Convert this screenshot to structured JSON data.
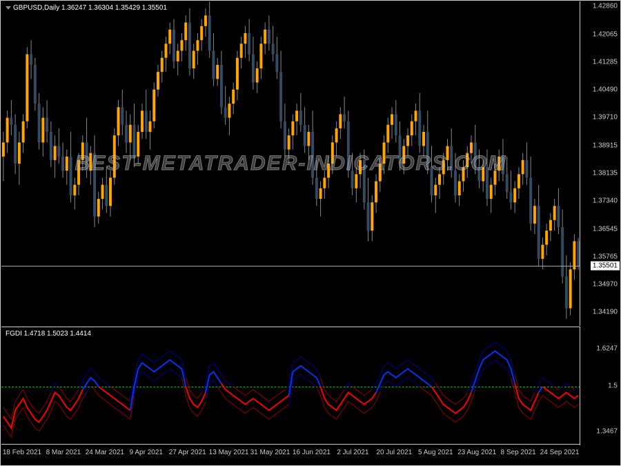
{
  "main": {
    "header": "GBPUSD,Daily  1.36247 1.36304 1.35429 1.35501",
    "watermark": "BEST-METATRADER-INDICATORS.COM",
    "ymin": 1.338,
    "ymax": 1.43,
    "yticks": [
      1.4286,
      1.42065,
      1.41285,
      1.4049,
      1.3971,
      1.38915,
      1.38135,
      1.3734,
      1.36545,
      1.35765,
      1.3497,
      1.3419
    ],
    "current_price": 1.35501,
    "bull_color": "#ffa500",
    "bear_color": "#334a60",
    "wick_color": "#888",
    "candle_width": 4,
    "candles": [
      {
        "o": 1.386,
        "h": 1.393,
        "l": 1.379,
        "c": 1.39
      },
      {
        "o": 1.39,
        "h": 1.399,
        "l": 1.387,
        "c": 1.397
      },
      {
        "o": 1.397,
        "h": 1.402,
        "l": 1.392,
        "c": 1.395
      },
      {
        "o": 1.395,
        "h": 1.398,
        "l": 1.381,
        "c": 1.384
      },
      {
        "o": 1.384,
        "h": 1.393,
        "l": 1.378,
        "c": 1.39
      },
      {
        "o": 1.39,
        "h": 1.398,
        "l": 1.387,
        "c": 1.396
      },
      {
        "o": 1.396,
        "h": 1.417,
        "l": 1.394,
        "c": 1.415
      },
      {
        "o": 1.415,
        "h": 1.419,
        "l": 1.408,
        "c": 1.412
      },
      {
        "o": 1.412,
        "h": 1.414,
        "l": 1.399,
        "c": 1.401
      },
      {
        "o": 1.401,
        "h": 1.404,
        "l": 1.388,
        "c": 1.39
      },
      {
        "o": 1.39,
        "h": 1.4,
        "l": 1.386,
        "c": 1.397
      },
      {
        "o": 1.397,
        "h": 1.402,
        "l": 1.39,
        "c": 1.393
      },
      {
        "o": 1.393,
        "h": 1.396,
        "l": 1.383,
        "c": 1.385
      },
      {
        "o": 1.385,
        "h": 1.392,
        "l": 1.38,
        "c": 1.389
      },
      {
        "o": 1.389,
        "h": 1.394,
        "l": 1.384,
        "c": 1.386
      },
      {
        "o": 1.386,
        "h": 1.39,
        "l": 1.38,
        "c": 1.382
      },
      {
        "o": 1.382,
        "h": 1.388,
        "l": 1.378,
        "c": 1.386
      },
      {
        "o": 1.386,
        "h": 1.393,
        "l": 1.373,
        "c": 1.375
      },
      {
        "o": 1.375,
        "h": 1.38,
        "l": 1.371,
        "c": 1.378
      },
      {
        "o": 1.378,
        "h": 1.387,
        "l": 1.375,
        "c": 1.385
      },
      {
        "o": 1.385,
        "h": 1.392,
        "l": 1.382,
        "c": 1.39
      },
      {
        "o": 1.39,
        "h": 1.397,
        "l": 1.38,
        "c": 1.382
      },
      {
        "o": 1.382,
        "h": 1.389,
        "l": 1.378,
        "c": 1.387
      },
      {
        "o": 1.387,
        "h": 1.392,
        "l": 1.366,
        "c": 1.369
      },
      {
        "o": 1.369,
        "h": 1.376,
        "l": 1.367,
        "c": 1.374
      },
      {
        "o": 1.374,
        "h": 1.38,
        "l": 1.371,
        "c": 1.378
      },
      {
        "o": 1.378,
        "h": 1.383,
        "l": 1.37,
        "c": 1.372
      },
      {
        "o": 1.372,
        "h": 1.382,
        "l": 1.369,
        "c": 1.38
      },
      {
        "o": 1.38,
        "h": 1.394,
        "l": 1.378,
        "c": 1.392
      },
      {
        "o": 1.392,
        "h": 1.402,
        "l": 1.389,
        "c": 1.4
      },
      {
        "o": 1.4,
        "h": 1.405,
        "l": 1.392,
        "c": 1.395
      },
      {
        "o": 1.395,
        "h": 1.399,
        "l": 1.387,
        "c": 1.39
      },
      {
        "o": 1.39,
        "h": 1.398,
        "l": 1.385,
        "c": 1.395
      },
      {
        "o": 1.395,
        "h": 1.401,
        "l": 1.383,
        "c": 1.386
      },
      {
        "o": 1.386,
        "h": 1.395,
        "l": 1.384,
        "c": 1.393
      },
      {
        "o": 1.393,
        "h": 1.401,
        "l": 1.391,
        "c": 1.399
      },
      {
        "o": 1.399,
        "h": 1.405,
        "l": 1.391,
        "c": 1.393
      },
      {
        "o": 1.393,
        "h": 1.399,
        "l": 1.388,
        "c": 1.396
      },
      {
        "o": 1.396,
        "h": 1.407,
        "l": 1.394,
        "c": 1.405
      },
      {
        "o": 1.405,
        "h": 1.412,
        "l": 1.403,
        "c": 1.41
      },
      {
        "o": 1.41,
        "h": 1.416,
        "l": 1.407,
        "c": 1.414
      },
      {
        "o": 1.414,
        "h": 1.42,
        "l": 1.41,
        "c": 1.418
      },
      {
        "o": 1.418,
        "h": 1.424,
        "l": 1.415,
        "c": 1.422
      },
      {
        "o": 1.422,
        "h": 1.425,
        "l": 1.411,
        "c": 1.413
      },
      {
        "o": 1.413,
        "h": 1.418,
        "l": 1.409,
        "c": 1.416
      },
      {
        "o": 1.416,
        "h": 1.421,
        "l": 1.413,
        "c": 1.419
      },
      {
        "o": 1.419,
        "h": 1.426,
        "l": 1.416,
        "c": 1.424
      },
      {
        "o": 1.424,
        "h": 1.428,
        "l": 1.409,
        "c": 1.411
      },
      {
        "o": 1.411,
        "h": 1.418,
        "l": 1.408,
        "c": 1.416
      },
      {
        "o": 1.416,
        "h": 1.421,
        "l": 1.412,
        "c": 1.419
      },
      {
        "o": 1.419,
        "h": 1.425,
        "l": 1.416,
        "c": 1.423
      },
      {
        "o": 1.423,
        "h": 1.428,
        "l": 1.42,
        "c": 1.426
      },
      {
        "o": 1.426,
        "h": 1.43,
        "l": 1.414,
        "c": 1.416
      },
      {
        "o": 1.416,
        "h": 1.421,
        "l": 1.406,
        "c": 1.408
      },
      {
        "o": 1.408,
        "h": 1.414,
        "l": 1.406,
        "c": 1.412
      },
      {
        "o": 1.412,
        "h": 1.416,
        "l": 1.398,
        "c": 1.4
      },
      {
        "o": 1.4,
        "h": 1.406,
        "l": 1.395,
        "c": 1.397
      },
      {
        "o": 1.397,
        "h": 1.403,
        "l": 1.392,
        "c": 1.401
      },
      {
        "o": 1.401,
        "h": 1.407,
        "l": 1.398,
        "c": 1.405
      },
      {
        "o": 1.405,
        "h": 1.416,
        "l": 1.402,
        "c": 1.414
      },
      {
        "o": 1.414,
        "h": 1.42,
        "l": 1.411,
        "c": 1.418
      },
      {
        "o": 1.418,
        "h": 1.423,
        "l": 1.414,
        "c": 1.421
      },
      {
        "o": 1.421,
        "h": 1.425,
        "l": 1.413,
        "c": 1.415
      },
      {
        "o": 1.415,
        "h": 1.42,
        "l": 1.405,
        "c": 1.407
      },
      {
        "o": 1.407,
        "h": 1.413,
        "l": 1.404,
        "c": 1.411
      },
      {
        "o": 1.411,
        "h": 1.42,
        "l": 1.408,
        "c": 1.418
      },
      {
        "o": 1.418,
        "h": 1.424,
        "l": 1.415,
        "c": 1.422
      },
      {
        "o": 1.422,
        "h": 1.426,
        "l": 1.416,
        "c": 1.418
      },
      {
        "o": 1.418,
        "h": 1.423,
        "l": 1.413,
        "c": 1.415
      },
      {
        "o": 1.415,
        "h": 1.42,
        "l": 1.408,
        "c": 1.41
      },
      {
        "o": 1.41,
        "h": 1.416,
        "l": 1.394,
        "c": 1.396
      },
      {
        "o": 1.396,
        "h": 1.401,
        "l": 1.386,
        "c": 1.388
      },
      {
        "o": 1.388,
        "h": 1.394,
        "l": 1.384,
        "c": 1.392
      },
      {
        "o": 1.392,
        "h": 1.398,
        "l": 1.388,
        "c": 1.396
      },
      {
        "o": 1.396,
        "h": 1.401,
        "l": 1.392,
        "c": 1.399
      },
      {
        "o": 1.399,
        "h": 1.404,
        "l": 1.393,
        "c": 1.395
      },
      {
        "o": 1.395,
        "h": 1.4,
        "l": 1.387,
        "c": 1.389
      },
      {
        "o": 1.389,
        "h": 1.395,
        "l": 1.385,
        "c": 1.393
      },
      {
        "o": 1.393,
        "h": 1.399,
        "l": 1.378,
        "c": 1.38
      },
      {
        "o": 1.38,
        "h": 1.385,
        "l": 1.372,
        "c": 1.374
      },
      {
        "o": 1.374,
        "h": 1.379,
        "l": 1.369,
        "c": 1.377
      },
      {
        "o": 1.377,
        "h": 1.382,
        "l": 1.374,
        "c": 1.38
      },
      {
        "o": 1.38,
        "h": 1.386,
        "l": 1.377,
        "c": 1.384
      },
      {
        "o": 1.384,
        "h": 1.392,
        "l": 1.381,
        "c": 1.39
      },
      {
        "o": 1.39,
        "h": 1.396,
        "l": 1.386,
        "c": 1.394
      },
      {
        "o": 1.394,
        "h": 1.4,
        "l": 1.391,
        "c": 1.398
      },
      {
        "o": 1.398,
        "h": 1.403,
        "l": 1.394,
        "c": 1.396
      },
      {
        "o": 1.396,
        "h": 1.399,
        "l": 1.38,
        "c": 1.382
      },
      {
        "o": 1.382,
        "h": 1.387,
        "l": 1.375,
        "c": 1.377
      },
      {
        "o": 1.377,
        "h": 1.383,
        "l": 1.373,
        "c": 1.381
      },
      {
        "o": 1.381,
        "h": 1.387,
        "l": 1.377,
        "c": 1.385
      },
      {
        "o": 1.385,
        "h": 1.388,
        "l": 1.371,
        "c": 1.373
      },
      {
        "o": 1.373,
        "h": 1.38,
        "l": 1.362,
        "c": 1.365
      },
      {
        "o": 1.365,
        "h": 1.375,
        "l": 1.362,
        "c": 1.373
      },
      {
        "o": 1.373,
        "h": 1.381,
        "l": 1.37,
        "c": 1.379
      },
      {
        "o": 1.379,
        "h": 1.386,
        "l": 1.376,
        "c": 1.384
      },
      {
        "o": 1.384,
        "h": 1.392,
        "l": 1.381,
        "c": 1.39
      },
      {
        "o": 1.39,
        "h": 1.397,
        "l": 1.387,
        "c": 1.395
      },
      {
        "o": 1.395,
        "h": 1.4,
        "l": 1.391,
        "c": 1.398
      },
      {
        "o": 1.398,
        "h": 1.402,
        "l": 1.39,
        "c": 1.392
      },
      {
        "o": 1.392,
        "h": 1.396,
        "l": 1.382,
        "c": 1.384
      },
      {
        "o": 1.384,
        "h": 1.391,
        "l": 1.381,
        "c": 1.389
      },
      {
        "o": 1.389,
        "h": 1.394,
        "l": 1.386,
        "c": 1.392
      },
      {
        "o": 1.392,
        "h": 1.398,
        "l": 1.389,
        "c": 1.396
      },
      {
        "o": 1.396,
        "h": 1.401,
        "l": 1.392,
        "c": 1.399
      },
      {
        "o": 1.399,
        "h": 1.404,
        "l": 1.387,
        "c": 1.389
      },
      {
        "o": 1.389,
        "h": 1.395,
        "l": 1.386,
        "c": 1.393
      },
      {
        "o": 1.393,
        "h": 1.399,
        "l": 1.381,
        "c": 1.383
      },
      {
        "o": 1.383,
        "h": 1.389,
        "l": 1.373,
        "c": 1.375
      },
      {
        "o": 1.375,
        "h": 1.38,
        "l": 1.37,
        "c": 1.378
      },
      {
        "o": 1.378,
        "h": 1.383,
        "l": 1.374,
        "c": 1.381
      },
      {
        "o": 1.381,
        "h": 1.387,
        "l": 1.378,
        "c": 1.385
      },
      {
        "o": 1.385,
        "h": 1.391,
        "l": 1.382,
        "c": 1.389
      },
      {
        "o": 1.389,
        "h": 1.394,
        "l": 1.38,
        "c": 1.382
      },
      {
        "o": 1.382,
        "h": 1.387,
        "l": 1.373,
        "c": 1.375
      },
      {
        "o": 1.375,
        "h": 1.381,
        "l": 1.372,
        "c": 1.379
      },
      {
        "o": 1.379,
        "h": 1.385,
        "l": 1.376,
        "c": 1.383
      },
      {
        "o": 1.383,
        "h": 1.389,
        "l": 1.38,
        "c": 1.387
      },
      {
        "o": 1.387,
        "h": 1.392,
        "l": 1.384,
        "c": 1.39
      },
      {
        "o": 1.39,
        "h": 1.395,
        "l": 1.381,
        "c": 1.383
      },
      {
        "o": 1.383,
        "h": 1.388,
        "l": 1.377,
        "c": 1.379
      },
      {
        "o": 1.379,
        "h": 1.385,
        "l": 1.376,
        "c": 1.383
      },
      {
        "o": 1.383,
        "h": 1.388,
        "l": 1.372,
        "c": 1.374
      },
      {
        "o": 1.374,
        "h": 1.38,
        "l": 1.37,
        "c": 1.378
      },
      {
        "o": 1.378,
        "h": 1.384,
        "l": 1.375,
        "c": 1.382
      },
      {
        "o": 1.382,
        "h": 1.388,
        "l": 1.379,
        "c": 1.386
      },
      {
        "o": 1.386,
        "h": 1.391,
        "l": 1.379,
        "c": 1.381
      },
      {
        "o": 1.381,
        "h": 1.386,
        "l": 1.374,
        "c": 1.376
      },
      {
        "o": 1.376,
        "h": 1.382,
        "l": 1.371,
        "c": 1.373
      },
      {
        "o": 1.373,
        "h": 1.379,
        "l": 1.37,
        "c": 1.377
      },
      {
        "o": 1.377,
        "h": 1.383,
        "l": 1.374,
        "c": 1.381
      },
      {
        "o": 1.381,
        "h": 1.387,
        "l": 1.378,
        "c": 1.385
      },
      {
        "o": 1.385,
        "h": 1.39,
        "l": 1.378,
        "c": 1.38
      },
      {
        "o": 1.38,
        "h": 1.386,
        "l": 1.365,
        "c": 1.367
      },
      {
        "o": 1.367,
        "h": 1.374,
        "l": 1.364,
        "c": 1.372
      },
      {
        "o": 1.372,
        "h": 1.378,
        "l": 1.355,
        "c": 1.357
      },
      {
        "o": 1.357,
        "h": 1.363,
        "l": 1.354,
        "c": 1.361
      },
      {
        "o": 1.361,
        "h": 1.367,
        "l": 1.358,
        "c": 1.365
      },
      {
        "o": 1.365,
        "h": 1.37,
        "l": 1.362,
        "c": 1.368
      },
      {
        "o": 1.368,
        "h": 1.374,
        "l": 1.365,
        "c": 1.372
      },
      {
        "o": 1.372,
        "h": 1.377,
        "l": 1.364,
        "c": 1.366
      },
      {
        "o": 1.366,
        "h": 1.371,
        "l": 1.35,
        "c": 1.352
      },
      {
        "o": 1.352,
        "h": 1.358,
        "l": 1.34,
        "c": 1.343
      },
      {
        "o": 1.343,
        "h": 1.356,
        "l": 1.341,
        "c": 1.354
      },
      {
        "o": 1.354,
        "h": 1.364,
        "l": 1.351,
        "c": 1.362
      },
      {
        "o": 1.362,
        "h": 1.363,
        "l": 1.354,
        "c": 1.355
      }
    ]
  },
  "indicator": {
    "header": "FGDI 1.4718 1.5023 1.4414",
    "ymin": 1.3,
    "ymax": 1.7,
    "yticks": [
      1.6247,
      1.5,
      1.3467
    ],
    "threshold": 1.5,
    "threshold_color": "#00cc00",
    "red_color": "#ff0000",
    "red_dark": "#990000",
    "blue_color": "#0033ff",
    "blue_dark": "#000099",
    "mid": [
      1.4,
      1.38,
      1.36,
      1.42,
      1.44,
      1.46,
      1.43,
      1.41,
      1.39,
      1.38,
      1.4,
      1.42,
      1.45,
      1.48,
      1.47,
      1.45,
      1.43,
      1.42,
      1.44,
      1.46,
      1.49,
      1.51,
      1.53,
      1.52,
      1.5,
      1.49,
      1.48,
      1.47,
      1.46,
      1.45,
      1.44,
      1.43,
      1.42,
      1.5,
      1.56,
      1.58,
      1.57,
      1.56,
      1.55,
      1.56,
      1.57,
      1.58,
      1.59,
      1.58,
      1.57,
      1.56,
      1.5,
      1.46,
      1.44,
      1.43,
      1.45,
      1.48,
      1.54,
      1.55,
      1.53,
      1.51,
      1.49,
      1.48,
      1.47,
      1.46,
      1.45,
      1.44,
      1.45,
      1.46,
      1.45,
      1.44,
      1.43,
      1.42,
      1.43,
      1.44,
      1.45,
      1.46,
      1.47,
      1.55,
      1.56,
      1.57,
      1.56,
      1.55,
      1.54,
      1.53,
      1.5,
      1.46,
      1.44,
      1.43,
      1.42,
      1.44,
      1.46,
      1.48,
      1.47,
      1.46,
      1.45,
      1.44,
      1.45,
      1.46,
      1.48,
      1.51,
      1.54,
      1.55,
      1.54,
      1.53,
      1.54,
      1.55,
      1.56,
      1.55,
      1.54,
      1.53,
      1.52,
      1.51,
      1.5,
      1.48,
      1.46,
      1.44,
      1.43,
      1.42,
      1.41,
      1.42,
      1.43,
      1.45,
      1.48,
      1.52,
      1.56,
      1.59,
      1.6,
      1.61,
      1.62,
      1.61,
      1.6,
      1.59,
      1.56,
      1.51,
      1.46,
      1.44,
      1.43,
      1.42,
      1.45,
      1.48,
      1.5,
      1.49,
      1.48,
      1.47,
      1.46,
      1.47,
      1.48,
      1.47,
      1.46,
      1.47
    ]
  },
  "xaxis": {
    "labels": [
      "18 Feb 2021",
      "8 Mar 2021",
      "24 Mar 2021",
      "9 Apr 2021",
      "27 Apr 2021",
      "13 May 2021",
      "31 May 2021",
      "16 Jun 2021",
      "2 Jul 2021",
      "20 Jul 2021",
      "5 Aug 2021",
      "23 Aug 2021",
      "8 Sep 2021",
      "24 Sep 2021"
    ]
  }
}
